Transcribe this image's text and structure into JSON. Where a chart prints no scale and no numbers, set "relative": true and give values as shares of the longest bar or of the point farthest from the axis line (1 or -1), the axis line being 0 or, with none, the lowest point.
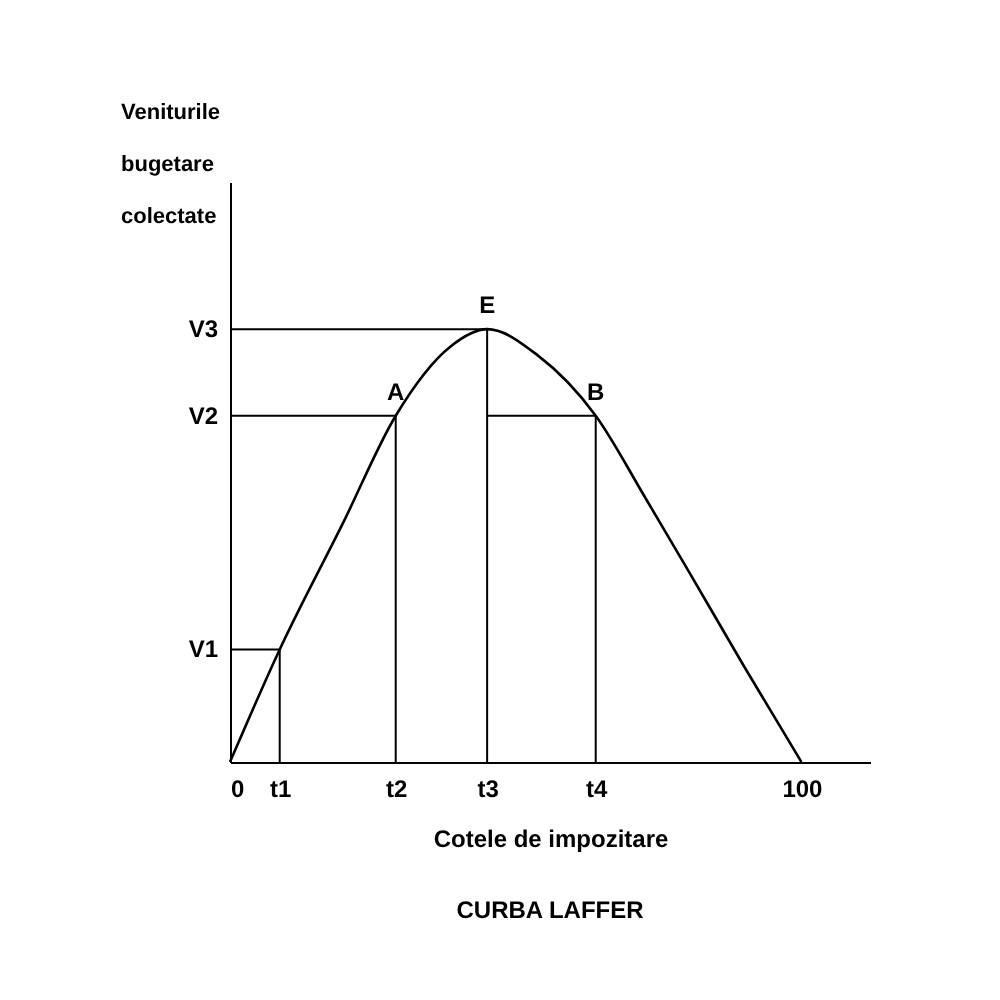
{
  "chart_data": {
    "type": "line",
    "title": "CURBA LAFFER",
    "xlabel": "Cotele de impozitare",
    "ylabel": "Veniturile bugetare colectate",
    "relative": true,
    "xlim": [
      0,
      112
    ],
    "xticks": [
      0,
      {
        "value": 8.7,
        "label": "t1"
      },
      {
        "value": 29,
        "label": "t2"
      },
      {
        "value": 45,
        "label": "t3"
      },
      {
        "value": 64,
        "label": "t4"
      },
      100
    ],
    "grid": false,
    "line_style": "solid",
    "series": [
      {
        "color": "#000000",
        "x": [
          0,
          8.7,
          19.7,
          29,
          38.6,
          45,
          53.8,
          64,
          72.7,
          80.3,
          90,
          100
        ],
        "values": [
          0,
          0.26,
          0.55,
          0.8,
          0.96,
          1,
          0.94,
          0.8,
          0.61,
          0.44,
          0.22,
          0
        ]
      },
      {
        "color": "#000000",
        "x": [
          0,
          8.7,
          8.7
        ],
        "values": [
          0.26,
          0.26,
          0
        ]
      },
      {
        "color": "#000000",
        "x": [
          0,
          29,
          29
        ],
        "values": [
          0.8,
          0.8,
          0
        ]
      },
      {
        "color": "#000000",
        "x": [
          45,
          64,
          64
        ],
        "values": [
          0.8,
          0.8,
          0
        ]
      },
      {
        "color": "#000000",
        "x": [
          0,
          45,
          45
        ],
        "values": [
          1,
          1,
          0
        ]
      }
    ],
    "annotations": [
      {
        "text": "A",
        "x": 29,
        "y": 0.8
      },
      {
        "text": "E",
        "x": 45,
        "y": 1
      },
      {
        "text": "B",
        "x": 64,
        "y": 0.8
      },
      {
        "text": "V1",
        "x": 0,
        "y": 0.26
      },
      {
        "text": "V2",
        "x": 0,
        "y": 0.8
      },
      {
        "text": "V3",
        "x": 0,
        "y": 1
      }
    ]
  }
}
